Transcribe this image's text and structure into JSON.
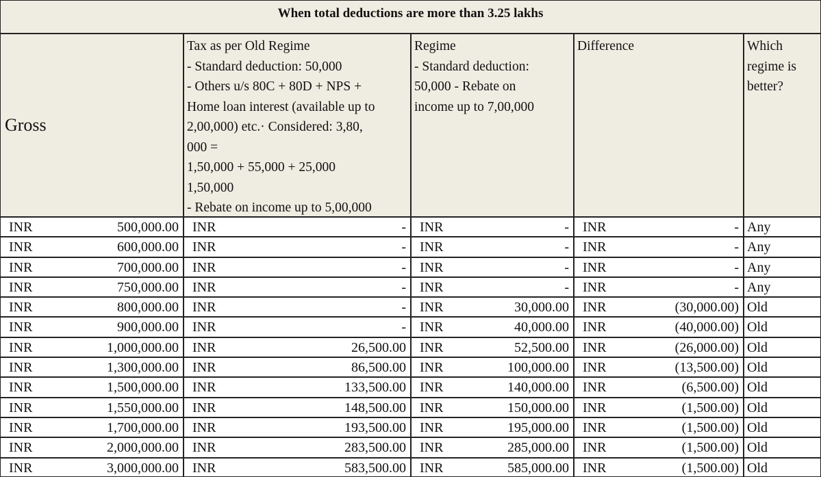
{
  "title": "When total deductions are more than 3.25 lakhs",
  "headers": {
    "gross": "Gross",
    "old_regime": "Tax as per Old Regime\n- Standard deduction: 50,000\n- Others u/s 80C + 80D + NPS +\nHome loan interest (available up to\n2,00,000) etc.· Considered: 3,80,\n000 =\n 1,50,000 + 55,000 + 25,000\n1,50,000\n- Rebate on income up to 5,00,000",
    "new_regime": "Regime\n- Standard deduction:\n50,000    - Rebate on\nincome up to 7,00,000",
    "difference": "Difference",
    "better": "Which\nregime is\nbetter?"
  },
  "rows": [
    {
      "gross_cur": "INR",
      "gross": "500,000.00",
      "old_cur": "INR",
      "old": "-",
      "new_cur": "INR",
      "new": "-",
      "diff_cur": "INR",
      "diff": "-",
      "better": "Any"
    },
    {
      "gross_cur": "INR",
      "gross": "600,000.00",
      "old_cur": "INR",
      "old": "-",
      "new_cur": "INR",
      "new": "-",
      "diff_cur": "INR",
      "diff": "-",
      "better": "Any"
    },
    {
      "gross_cur": "INR",
      "gross": "700,000.00",
      "old_cur": "INR",
      "old": "-",
      "new_cur": "INR",
      "new": "-",
      "diff_cur": "INR",
      "diff": "-",
      "better": "Any"
    },
    {
      "gross_cur": "INR",
      "gross": "750,000.00",
      "old_cur": "INR",
      "old": "-",
      "new_cur": "INR",
      "new": "-",
      "diff_cur": "INR",
      "diff": "-",
      "better": "Any"
    },
    {
      "gross_cur": "INR",
      "gross": "800,000.00",
      "old_cur": "INR",
      "old": "-",
      "new_cur": "INR",
      "new": "30,000.00",
      "diff_cur": "INR",
      "diff": "(30,000.00)",
      "better": "Old"
    },
    {
      "gross_cur": "INR",
      "gross": "900,000.00",
      "old_cur": "INR",
      "old": "-",
      "new_cur": "INR",
      "new": "40,000.00",
      "diff_cur": "INR",
      "diff": "(40,000.00)",
      "better": "Old"
    },
    {
      "gross_cur": "INR",
      "gross": "1,000,000.00",
      "old_cur": "INR",
      "old": "26,500.00",
      "new_cur": "INR",
      "new": "52,500.00",
      "diff_cur": "INR",
      "diff": "(26,000.00)",
      "better": "Old"
    },
    {
      "gross_cur": "INR",
      "gross": "1,300,000.00",
      "old_cur": "INR",
      "old": "86,500.00",
      "new_cur": "INR",
      "new": "100,000.00",
      "diff_cur": "INR",
      "diff": "(13,500.00)",
      "better": "Old"
    },
    {
      "gross_cur": "INR",
      "gross": "1,500,000.00",
      "old_cur": "INR",
      "old": "133,500.00",
      "new_cur": "INR",
      "new": "140,000.00",
      "diff_cur": "INR",
      "diff": "(6,500.00)",
      "better": "Old"
    },
    {
      "gross_cur": "INR",
      "gross": "1,550,000.00",
      "old_cur": "INR",
      "old": "148,500.00",
      "new_cur": "INR",
      "new": "150,000.00",
      "diff_cur": "INR",
      "diff": "(1,500.00)",
      "better": "Old"
    },
    {
      "gross_cur": "INR",
      "gross": "1,700,000.00",
      "old_cur": "INR",
      "old": "193,500.00",
      "new_cur": "INR",
      "new": "195,000.00",
      "diff_cur": "INR",
      "diff": "(1,500.00)",
      "better": "Old"
    },
    {
      "gross_cur": "INR",
      "gross": "2,000,000.00",
      "old_cur": "INR",
      "old": "283,500.00",
      "new_cur": "INR",
      "new": "285,000.00",
      "diff_cur": "INR",
      "diff": "(1,500.00)",
      "better": "Old"
    },
    {
      "gross_cur": "INR",
      "gross": "3,000,000.00",
      "old_cur": "INR",
      "old": "583,500.00",
      "new_cur": "INR",
      "new": "585,000.00",
      "diff_cur": "INR",
      "diff": "(1,500.00)",
      "better": "Old"
    }
  ]
}
